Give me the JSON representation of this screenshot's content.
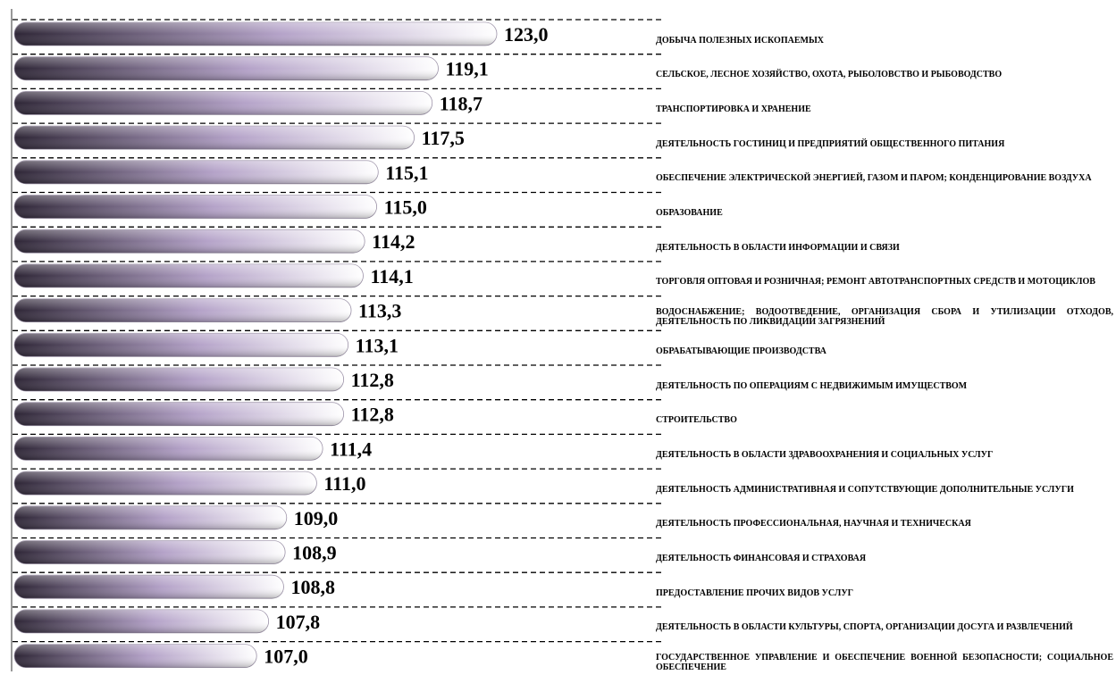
{
  "colors": {
    "bar_dark": "#2e2636",
    "bar_mid": "#b4a2c8",
    "bar_light": "#ffffff",
    "gridline": "#000000"
  },
  "chart_data": {
    "type": "bar",
    "orientation": "horizontal",
    "title": "",
    "xlabel": "",
    "ylabel": "",
    "grid": true,
    "legend": "none",
    "categories": [
      "ДОБЫЧА ПОЛЕЗНЫХ ИСКОПАЕМЫХ",
      "СЕЛЬСКОЕ, ЛЕСНОЕ ХОЗЯЙСТВО, ОХОТА, РЫБОЛОВСТВО И РЫБОВОДСТВО",
      "ТРАНСПОРТИРОВКА И ХРАНЕНИЕ",
      "ДЕЯТЕЛЬНОСТЬ ГОСТИНИЦ И ПРЕДПРИЯТИЙ ОБЩЕСТВЕННОГО ПИТАНИЯ",
      "ОБЕСПЕЧЕНИЕ ЭЛЕКТРИЧЕСКОЙ ЭНЕРГИЕЙ, ГАЗОМ И ПАРОМ; КОНДЕНЦИРОВАНИЕ ВОЗДУХА",
      "ОБРАЗОВАНИЕ",
      "ДЕЯТЕЛЬНОСТЬ В ОБЛАСТИ ИНФОРМАЦИИ И СВЯЗИ",
      "ТОРГОВЛЯ ОПТОВАЯ И РОЗНИЧНАЯ; РЕМОНТ АВТОТРАНСПОРТНЫХ СРЕДСТВ И МОТОЦИКЛОВ",
      "ВОДОСНАБЖЕНИЕ; ВОДООТВЕДЕНИЕ, ОРГАНИЗАЦИЯ СБОРА И УТИЛИЗАЦИИ ОТХОДОВ, ДЕЯТЕЛЬНОСТЬ ПО ЛИКВИДАЦИИ ЗАГРЯЗНЕНИЙ",
      "ОБРАБАТЫВАЮЩИЕ ПРОИЗВОДСТВА",
      "ДЕЯТЕЛЬНОСТЬ ПО ОПЕРАЦИЯМ С НЕДВИЖИМЫМ ИМУЩЕСТВОМ",
      "СТРОИТЕЛЬСТВО",
      "ДЕЯТЕЛЬНОСТЬ В ОБЛАСТИ ЗДРАВООХРАНЕНИЯ И СОЦИАЛЬНЫХ УСЛУГ",
      "ДЕЯТЕЛЬНОСТЬ АДМИНИСТРАТИВНАЯ И СОПУТСТВУЮЩИЕ ДОПОЛНИТЕЛЬНЫЕ УСЛУГИ",
      "ДЕЯТЕЛЬНОСТЬ ПРОФЕССИОНАЛЬНАЯ, НАУЧНАЯ И ТЕХНИЧЕСКАЯ",
      "ДЕЯТЕЛЬНОСТЬ ФИНАНСОВАЯ И СТРАХОВАЯ",
      "ПРЕДОСТАВЛЕНИЕ ПРОЧИХ ВИДОВ УСЛУГ",
      "ДЕЯТЕЛЬНОСТЬ В ОБЛАСТИ КУЛЬТУРЫ, СПОРТА, ОРГАНИЗАЦИИ ДОСУГА И РАЗВЛЕЧЕНИЙ",
      "ГОСУДАРСТВЕННОЕ УПРАВЛЕНИЕ И ОБЕСПЕЧЕНИЕ ВОЕННОЙ БЕЗОПАСНОСТИ; СОЦИАЛЬНОЕ ОБЕСПЕЧЕНИЕ"
    ],
    "values": [
      123.0,
      119.1,
      118.7,
      117.5,
      115.1,
      115.0,
      114.2,
      114.1,
      113.3,
      113.1,
      112.8,
      112.8,
      111.4,
      111.0,
      109.0,
      108.9,
      108.8,
      107.8,
      107.0
    ],
    "value_labels": [
      "123,0",
      "119,1",
      "118,7",
      "117,5",
      "115,1",
      "115,0",
      "114,2",
      "114,1",
      "113,3",
      "113,1",
      "112,8",
      "112,8",
      "111,4",
      "111,0",
      "109,0",
      "108,9",
      "108,8",
      "107,8",
      "107,0"
    ]
  }
}
